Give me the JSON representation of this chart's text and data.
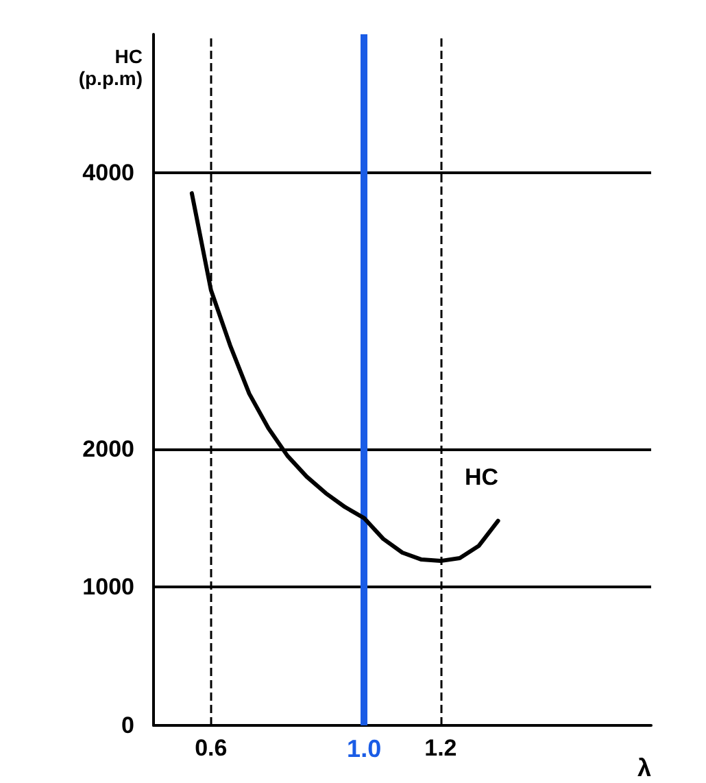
{
  "chart_data": {
    "type": "line",
    "ylabel": "HC (p.p.m)",
    "xlabel": "λ",
    "series": [
      {
        "color": "#000000",
        "x": [
          0.55,
          0.6,
          0.65,
          0.7,
          0.75,
          0.8,
          0.85,
          0.9,
          0.95,
          1.0,
          1.05,
          1.1,
          1.15,
          1.2,
          1.25,
          1.3,
          1.35
        ],
        "values": [
          3850,
          3150,
          2750,
          2400,
          2150,
          1950,
          1800,
          1680,
          1580,
          1500,
          1350,
          1250,
          1200,
          1190,
          1210,
          1300,
          1480
        ]
      }
    ],
    "xlim": [
      0.45,
      1.75
    ],
    "xticks": [
      0.6,
      1.2
    ],
    "ylim": [
      0,
      5000
    ],
    "yticks": [
      0,
      1000,
      2000,
      4000
    ],
    "grid": "y",
    "marker": "none",
    "line_style": "solid",
    "ref_lines": [
      {
        "axis": "x",
        "value": 0.6,
        "label": null,
        "color": "#000000",
        "line_style": "dashed"
      },
      {
        "axis": "x",
        "value": 1.0,
        "label": "1.0",
        "color": "#1a5ce6",
        "line_style": "solid"
      },
      {
        "axis": "x",
        "value": 1.2,
        "label": null,
        "color": "#000000",
        "line_style": "dashed"
      }
    ],
    "annotations": [
      "HC"
    ]
  }
}
